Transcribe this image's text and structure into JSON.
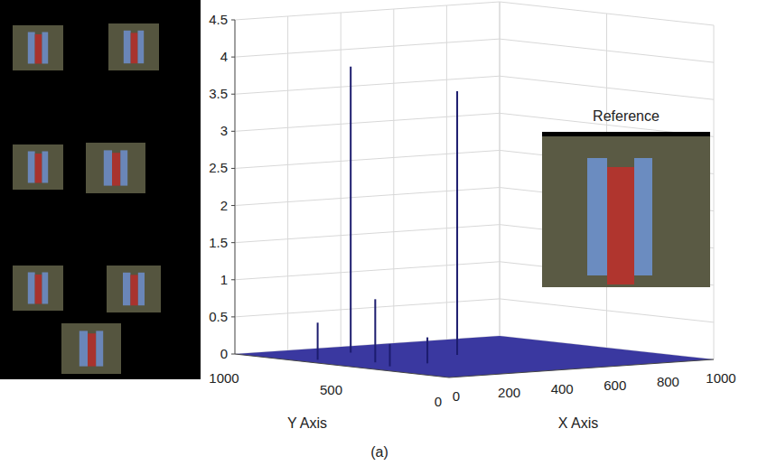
{
  "chart_data": {
    "type": "stem3d",
    "title": "(a)",
    "xlabel": "X Axis",
    "ylabel": "Y Axis",
    "annotation": "Reference",
    "xlim": [
      0,
      1000
    ],
    "ylim": [
      0,
      1000
    ],
    "zlim": [
      0,
      4.5
    ],
    "xticks": [
      0,
      200,
      400,
      600,
      800,
      1000
    ],
    "yticks": [
      0,
      500,
      1000
    ],
    "zticks": [
      0,
      0.5,
      1,
      1.5,
      2,
      2.5,
      3,
      3.5,
      4,
      4.5
    ],
    "x": [
      70,
      300,
      150,
      100,
      250,
      500
    ],
    "y": [
      700,
      830,
      530,
      400,
      410,
      580
    ],
    "values": [
      0.5,
      3.85,
      0.85,
      0.3,
      0.35,
      3.55
    ],
    "color": "#1c1c6e",
    "grid": true
  }
}
